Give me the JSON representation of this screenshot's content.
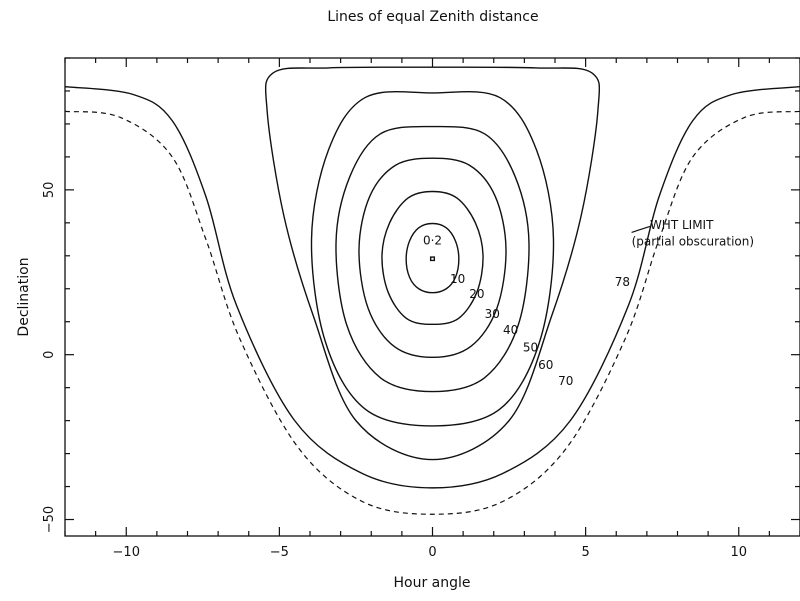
{
  "chart_data": {
    "type": "line",
    "title": "Lines of equal Zenith distance",
    "xlabel": "Hour angle",
    "ylabel": "Declination",
    "xlim": [
      -12,
      12
    ],
    "ylim": [
      -55,
      90
    ],
    "xticks": [
      -10,
      -5,
      0,
      5,
      10
    ],
    "yticks": [
      -50,
      0,
      50
    ],
    "grid": false,
    "series": [
      {
        "name": "0·2",
        "style": "solid",
        "points": [
          [
            -0.06,
            28.6
          ],
          [
            0.06,
            28.6
          ],
          [
            0.06,
            29.6
          ],
          [
            -0.06,
            29.6
          ]
        ]
      },
      {
        "name": "10",
        "style": "solid",
        "points": [
          [
            0,
            39.8
          ],
          [
            0.45,
            38.5
          ],
          [
            0.75,
            34.5
          ],
          [
            0.86,
            29
          ],
          [
            0.75,
            23.5
          ],
          [
            0.45,
            20
          ],
          [
            0,
            18.8
          ],
          [
            -0.45,
            20
          ],
          [
            -0.75,
            23.5
          ],
          [
            -0.86,
            29
          ],
          [
            -0.75,
            34.5
          ],
          [
            -0.45,
            38.5
          ]
        ]
      },
      {
        "name": "20",
        "style": "solid",
        "points": [
          [
            0,
            49.5
          ],
          [
            0.8,
            47.5
          ],
          [
            1.4,
            40
          ],
          [
            1.65,
            30
          ],
          [
            1.45,
            19
          ],
          [
            0.85,
            11
          ],
          [
            0,
            9.2
          ],
          [
            -0.85,
            11
          ],
          [
            -1.45,
            19
          ],
          [
            -1.65,
            30
          ],
          [
            -1.4,
            40
          ],
          [
            -0.8,
            47.5
          ]
        ]
      },
      {
        "name": "30",
        "style": "solid",
        "points": [
          [
            0,
            59.6
          ],
          [
            1.2,
            57.5
          ],
          [
            2.05,
            48
          ],
          [
            2.4,
            32
          ],
          [
            2.1,
            14
          ],
          [
            1.25,
            2.5
          ],
          [
            0,
            -0.8
          ],
          [
            -1.25,
            2.5
          ],
          [
            -2.1,
            14
          ],
          [
            -2.4,
            32
          ],
          [
            -2.05,
            48
          ],
          [
            -1.2,
            57.5
          ]
        ]
      },
      {
        "name": "40",
        "style": "solid",
        "points": [
          [
            0,
            69.2
          ],
          [
            1.7,
            67
          ],
          [
            2.7,
            54
          ],
          [
            3.15,
            34
          ],
          [
            2.8,
            9
          ],
          [
            1.7,
            -7
          ],
          [
            0,
            -11.2
          ],
          [
            -1.7,
            -7
          ],
          [
            -2.8,
            9
          ],
          [
            -3.15,
            34
          ],
          [
            -2.7,
            54
          ],
          [
            -1.7,
            67
          ]
        ]
      },
      {
        "name": "50",
        "style": "solid",
        "points": [
          [
            0,
            79.4
          ],
          [
            2.2,
            78
          ],
          [
            3.4,
            62
          ],
          [
            3.95,
            35
          ],
          [
            3.5,
            4
          ],
          [
            2.2,
            -16.5
          ],
          [
            0,
            -21.6
          ],
          [
            -2.2,
            -16.5
          ],
          [
            -3.5,
            4
          ],
          [
            -3.95,
            35
          ],
          [
            -3.4,
            62
          ],
          [
            -2.2,
            78
          ]
        ]
      },
      {
        "name": "60",
        "style": "solid",
        "points": [
          [
            0,
            87.2
          ],
          [
            3.4,
            87
          ],
          [
            5.2,
            85.5
          ],
          [
            5.4,
            74
          ],
          [
            4.85,
            42
          ],
          [
            3.9,
            12
          ],
          [
            2.5,
            -20
          ],
          [
            0,
            -31.8
          ],
          [
            -2.5,
            -20
          ],
          [
            -3.9,
            12
          ],
          [
            -4.85,
            42
          ],
          [
            -5.4,
            74
          ],
          [
            -5.2,
            85.5
          ],
          [
            -3.4,
            87
          ]
        ]
      },
      {
        "name": "70",
        "style": "solid",
        "points": [
          [
            -12,
            81.3
          ],
          [
            -9.8,
            79
          ],
          [
            -8.5,
            71
          ],
          [
            -7.4,
            48
          ],
          [
            -6.4,
            15
          ],
          [
            -4.5,
            -20
          ],
          [
            -2.3,
            -36
          ],
          [
            0,
            -40.4
          ],
          [
            2.3,
            -36
          ],
          [
            4.5,
            -20
          ],
          [
            6.4,
            15
          ],
          [
            7.4,
            48
          ],
          [
            8.5,
            71
          ],
          [
            9.8,
            79
          ],
          [
            12,
            81.3
          ]
        ]
      },
      {
        "name": "78",
        "style": "dashed",
        "points": [
          [
            -12,
            73.8
          ],
          [
            -10.2,
            72
          ],
          [
            -8.5,
            60
          ],
          [
            -7.4,
            35
          ],
          [
            -6.3,
            5
          ],
          [
            -4.4,
            -28
          ],
          [
            -2.3,
            -44.5
          ],
          [
            0,
            -48.4
          ],
          [
            2.3,
            -44.5
          ],
          [
            4.4,
            -28
          ],
          [
            6.3,
            5
          ],
          [
            7.4,
            35
          ],
          [
            8.5,
            60
          ],
          [
            10.2,
            72
          ],
          [
            12,
            73.8
          ]
        ]
      }
    ],
    "contour_labels": [
      {
        "text": "0·2",
        "x": 0,
        "y": 33.5
      },
      {
        "text": "10",
        "x": 0.82,
        "y": 21.8
      },
      {
        "text": "20",
        "x": 1.45,
        "y": 17.2
      },
      {
        "text": "30",
        "x": 1.95,
        "y": 11.2
      },
      {
        "text": "40",
        "x": 2.55,
        "y": 6.3
      },
      {
        "text": "50",
        "x": 3.2,
        "y": 1.0
      },
      {
        "text": "60",
        "x": 3.7,
        "y": -4.3
      },
      {
        "text": "70",
        "x": 4.35,
        "y": -9.2
      },
      {
        "text": "78",
        "x": 6.2,
        "y": 20.8
      }
    ],
    "annotations": [
      {
        "text": "WHT LIMIT",
        "x": 7.1,
        "y": 38.1
      },
      {
        "text": "(partial obscuration)",
        "x": 6.5,
        "y": 33.1
      }
    ],
    "annotation_leader": [
      [
        6.5,
        37.1
      ],
      [
        7.1,
        38.9
      ]
    ]
  }
}
